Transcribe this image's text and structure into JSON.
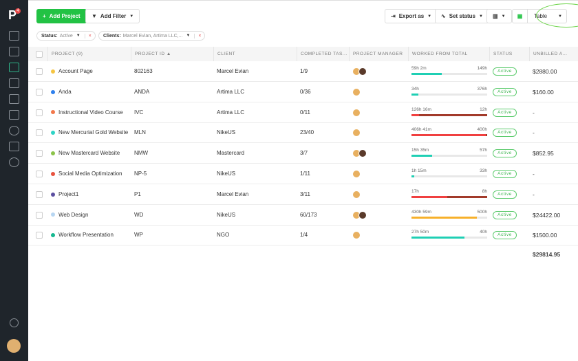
{
  "sidebar": {
    "logo": "P",
    "notification_count": "4",
    "items": [
      "home-icon",
      "buildings-icon",
      "folder-icon",
      "user-icon",
      "contacts-icon",
      "chart-icon",
      "clock-icon",
      "calendar-icon",
      "plus-circle-icon"
    ],
    "active": "folder-icon",
    "bottom": [
      "info-icon",
      "user-avatar"
    ]
  },
  "toolbar": {
    "add_project": "Add Project",
    "add_filter": "Add Filter",
    "export": "Export as",
    "set_status": "Set status",
    "view": "Table"
  },
  "filters": [
    {
      "label": "Status:",
      "value": "Active"
    },
    {
      "label": "Clients:",
      "value": "Marcel Evian, Artima LLC,..."
    }
  ],
  "columns": [
    "PROJECT (9)",
    "PROJECT ID ▲",
    "CLIENT",
    "COMPLETED TAS...",
    "PROJECT MANAGER",
    "WORKED FROM TOTAL",
    "STATUS",
    "UNBILLED A..."
  ],
  "rows": [
    {
      "name": "Account Page",
      "color": "#f5c542",
      "id": "802163",
      "client": "Marcel Evian",
      "tasks": "1/9",
      "managers": 2,
      "worked": "59h 2m",
      "total": "149h",
      "progress": 0.4,
      "over": false,
      "bar": "#1fcfb4",
      "status": "Active",
      "unbilled": "$2880.00"
    },
    {
      "name": "Anda",
      "color": "#2f80ed",
      "id": "ANDA",
      "client": "Artima LLC",
      "tasks": "0/36",
      "managers": 1,
      "worked": "34h",
      "total": "376h",
      "progress": 0.09,
      "over": false,
      "bar": "#1fcfb4",
      "status": "Active",
      "unbilled": "$160.00"
    },
    {
      "name": "Instructional Video Course",
      "color": "#f2784b",
      "id": "IVC",
      "client": "Artima LLC",
      "tasks": "0/11",
      "managers": 1,
      "worked": "126h 16m",
      "total": "12h",
      "progress": 0.1,
      "over": true,
      "bar": "#f04040",
      "status": "Active",
      "unbilled": "-"
    },
    {
      "name": "New Mercurial Gold Website",
      "color": "#2ed3c6",
      "id": "MLN",
      "client": "NikeUS",
      "tasks": "23/40",
      "managers": 1,
      "worked": "406h 41m",
      "total": "400h",
      "progress": 0.98,
      "over": true,
      "bar": "#f04040",
      "status": "Active",
      "unbilled": "-"
    },
    {
      "name": "New Mastercard Website",
      "color": "#8bc34a",
      "id": "NMW",
      "client": "Mastercard",
      "tasks": "3/7",
      "managers": 2,
      "worked": "15h 35m",
      "total": "57h",
      "progress": 0.27,
      "over": false,
      "bar": "#1fcfb4",
      "status": "Active",
      "unbilled": "$852.95"
    },
    {
      "name": "Social Media Optimization",
      "color": "#e8533f",
      "id": "NP-5",
      "client": "NikeUS",
      "tasks": "1/11",
      "managers": 1,
      "worked": "1h 15m",
      "total": "33h",
      "progress": 0.04,
      "over": false,
      "bar": "#1fcfb4",
      "status": "Active",
      "unbilled": "-"
    },
    {
      "name": "Project1",
      "color": "#5b4fa0",
      "id": "P1",
      "client": "Marcel Evian",
      "tasks": "3/11",
      "managers": 1,
      "worked": "17h",
      "total": "8h",
      "progress": 0.47,
      "over": true,
      "bar": "#f04040",
      "status": "Active",
      "unbilled": "-"
    },
    {
      "name": "Web Design",
      "color": "#b7d6f2",
      "id": "WD",
      "client": "NikeUS",
      "tasks": "60/173",
      "managers": 2,
      "worked": "430h 59m",
      "total": "500h",
      "progress": 0.86,
      "over": false,
      "bar": "#f7b02a",
      "status": "Active",
      "unbilled": "$24422.00"
    },
    {
      "name": "Workflow Presentation",
      "color": "#17b890",
      "id": "WP",
      "client": "NGO",
      "tasks": "1/4",
      "managers": 1,
      "worked": "27h 50m",
      "total": "40h",
      "progress": 0.7,
      "over": false,
      "bar": "#1fcfb4",
      "status": "Active",
      "unbilled": "$1500.00"
    }
  ],
  "total_unbilled": "$29814.95"
}
